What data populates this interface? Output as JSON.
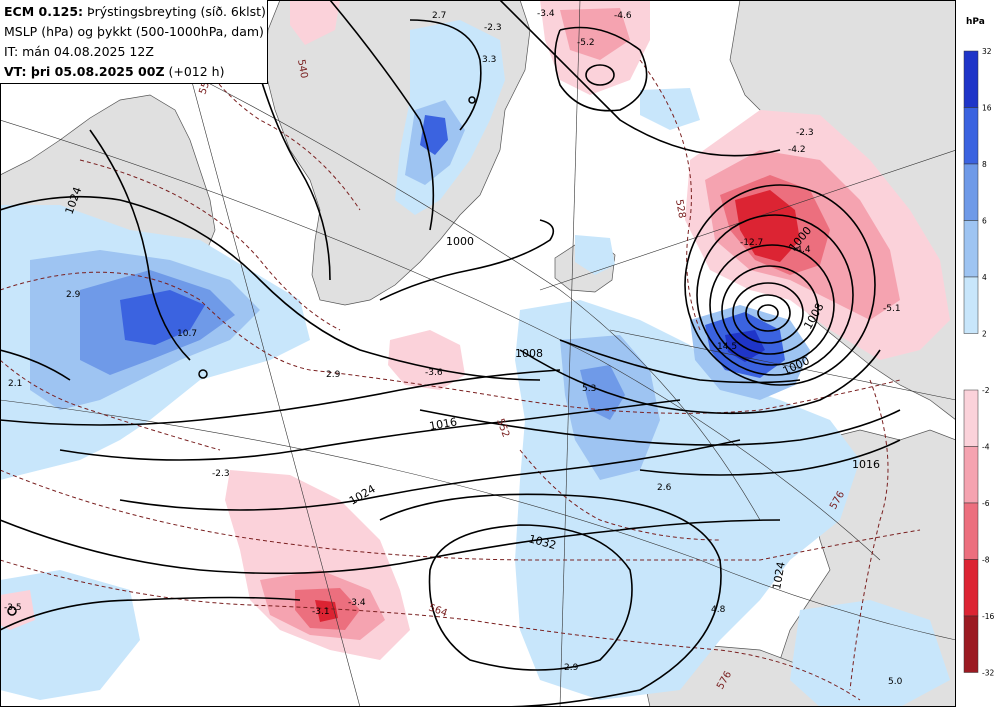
{
  "info": {
    "model": "ECM 0.125:",
    "field": "Þrýstingsbreyting (síð. 6klst)",
    "line2": "MSLP (hPa) og þykkt (500-1000hPa, dam)",
    "line3": "IT: mán 04.08.2025 12Z",
    "vt_bold": "VT: þri 05.08.2025 00Z",
    "vt_rest": "(+012 h)"
  },
  "legend": {
    "unit": "hPa",
    "positive": [
      {
        "label": "32",
        "color": "#1f35c8"
      },
      {
        "label": "16",
        "color": "#3b63e0"
      },
      {
        "label": "8",
        "color": "#6f9ae8"
      },
      {
        "label": "6",
        "color": "#9ec4f2"
      },
      {
        "label": "4",
        "color": "#c8e6fb"
      },
      {
        "label": "2",
        "color": ""
      }
    ],
    "negative": [
      {
        "label": "-2",
        "color": "#fbd2da"
      },
      {
        "label": "-4",
        "color": "#f5a3b0"
      },
      {
        "label": "-6",
        "color": "#ec6f7e"
      },
      {
        "label": "-8",
        "color": "#dc2433"
      },
      {
        "label": "-16",
        "color": "#9b1a22"
      },
      {
        "label": "-32",
        "color": ""
      }
    ]
  },
  "colors": {
    "land": "#e0e0e0",
    "sea": "#ffffff",
    "isobar": "#000000",
    "thickness": "#7a2020"
  },
  "map_labels": {
    "isobars": [
      "1024",
      "1000",
      "1008",
      "1016",
      "1024",
      "1032",
      "1024",
      "1016",
      "1000",
      "1000",
      "1008"
    ],
    "thickness": [
      "540",
      "552",
      "564",
      "576",
      "552",
      "564",
      "576",
      "528"
    ],
    "change": [
      "2.7",
      "-2.3",
      "-3.4",
      "-4.6",
      "-5.2",
      "3.3",
      "2.9",
      "10.7",
      "2.1",
      "2.9",
      "-3.6",
      "-2.3",
      "-3.1",
      "-3.4",
      "-3.5",
      "5.3",
      "2.6",
      "4.8",
      "2.9",
      "-12.7",
      "-4.4",
      "-2.3",
      "-4.2",
      "-5.1",
      "14.5",
      "5.0"
    ]
  }
}
